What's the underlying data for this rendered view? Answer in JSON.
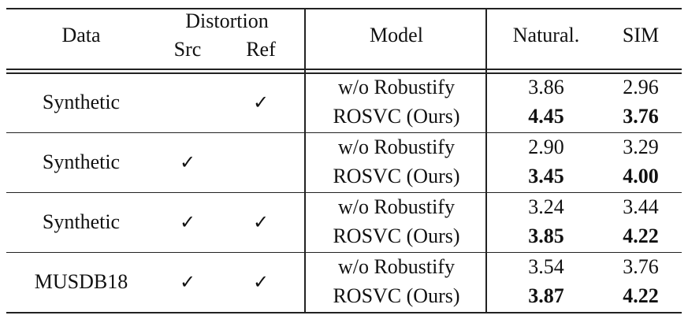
{
  "header": {
    "data": "Data",
    "distortion": "Distortion",
    "src": "Src",
    "ref": "Ref",
    "model": "Model",
    "natural": "Natural.",
    "sim": "SIM"
  },
  "check_glyph": "✓",
  "groups": [
    {
      "data": "Synthetic",
      "src": "",
      "ref": "✓",
      "rows": [
        {
          "model": "w/o Robustify",
          "natural": "3.86",
          "sim": "2.96",
          "bold": false
        },
        {
          "model": "ROSVC (Ours)",
          "natural": "4.45",
          "sim": "3.76",
          "bold": true
        }
      ]
    },
    {
      "data": "Synthetic",
      "src": "✓",
      "ref": "",
      "rows": [
        {
          "model": "w/o Robustify",
          "natural": "2.90",
          "sim": "3.29",
          "bold": false
        },
        {
          "model": "ROSVC (Ours)",
          "natural": "3.45",
          "sim": "4.00",
          "bold": true
        }
      ]
    },
    {
      "data": "Synthetic",
      "src": "✓",
      "ref": "✓",
      "rows": [
        {
          "model": "w/o Robustify",
          "natural": "3.24",
          "sim": "3.44",
          "bold": false
        },
        {
          "model": "ROSVC (Ours)",
          "natural": "3.85",
          "sim": "4.22",
          "bold": true
        }
      ]
    },
    {
      "data": "MUSDB18",
      "src": "✓",
      "ref": "✓",
      "rows": [
        {
          "model": "w/o Robustify",
          "natural": "3.54",
          "sim": "3.76",
          "bold": false
        },
        {
          "model": "ROSVC (Ours)",
          "natural": "3.87",
          "sim": "4.22",
          "bold": true
        }
      ]
    }
  ]
}
